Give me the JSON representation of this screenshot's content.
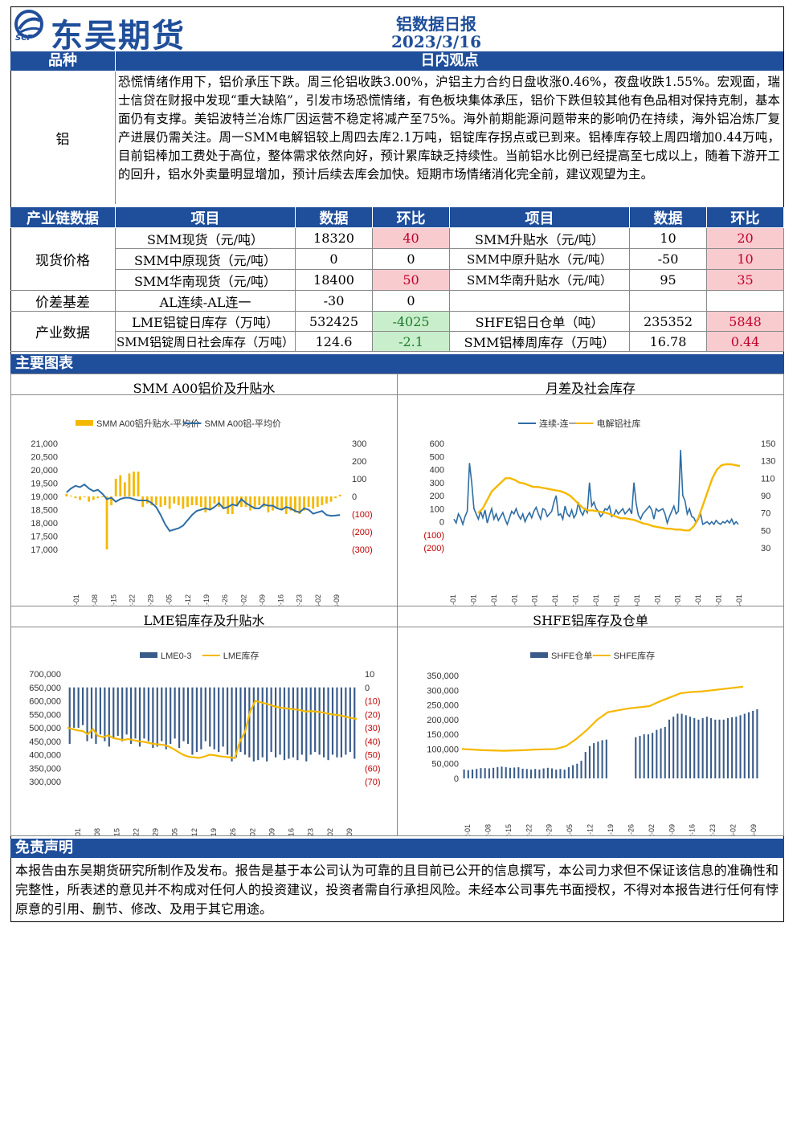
{
  "header": {
    "brand": "东吴期货",
    "logo_sub": "SCF",
    "report_title": "铝数据日报",
    "report_date": "2023/3/16"
  },
  "view": {
    "col1_label": "品种",
    "col2_label": "日内观点",
    "variety": "铝",
    "text": "恐慌情绪作用下，铝价承压下跌。周三伦铝收跌3.00%，沪铝主力合约日盘收涨0.46%，夜盘收跌1.55%。宏观面，瑞士信贷在财报中发现“重大缺陷”，引发市场恐慌情绪，有色板块集体承压，铝价下跌但较其他有色品相对保持克制，基本面仍有支撑。美铝波特兰冶炼厂因运营不稳定将减产至75%。海外前期能源问题带来的影响仍在持续，海外铝冶炼厂复产进展仍需关注。周一SMM电解铝较上周四去库2.1万吨，铝锭库存拐点或已到来。铝棒库存较上周四增加0.44万吨，目前铝棒加工费处于高位，整体需求依然向好，预计累库缺乏持续性。当前铝水比例已经提高至七成以上，随着下游开工的回升，铝水外卖量明显增加，预计后续去库会加快。短期市场情绪消化完全前，建议观望为主。"
  },
  "table": {
    "section": "产业链数据",
    "h_item": "项目",
    "h_data": "数据",
    "h_chg": "环比",
    "groups": {
      "spot": "现货价格",
      "basis": "价差基差",
      "industry": "产业数据"
    },
    "rows": [
      {
        "l_item": "SMM现货（元/吨）",
        "l_data": "18320",
        "l_chg": "40",
        "r_item": "SMM升贴水（元/吨）",
        "r_data": "10",
        "r_chg": "20"
      },
      {
        "l_item": "SMM中原现货（元/吨）",
        "l_data": "0",
        "l_chg": "0",
        "r_item": "SMM中原升贴水（元/吨）",
        "r_data": "-50",
        "r_chg": "10"
      },
      {
        "l_item": "SMM华南现货（元/吨）",
        "l_data": "18400",
        "l_chg": "50",
        "r_item": "SMM华南升贴水（元/吨）",
        "r_data": "95",
        "r_chg": "35"
      },
      {
        "l_item": "AL连续-AL连一",
        "l_data": "-30",
        "l_chg": "0",
        "r_item": "",
        "r_data": "",
        "r_chg": ""
      },
      {
        "l_item": "LME铝锭日库存（万吨）",
        "l_data": "532425",
        "l_chg": "-4025",
        "r_item": "SHFE铝日仓单（吨）",
        "r_data": "235352",
        "r_chg": "5848"
      },
      {
        "l_item": "SMM铝锭周日社会库存（万吨）",
        "l_data": "124.6",
        "l_chg": "-2.1",
        "r_item": "SMM铝棒周库存（万吨）",
        "r_data": "16.78",
        "r_chg": "0.44"
      }
    ]
  },
  "charts_section": "主要图表",
  "chart_data": [
    {
      "type": "bar+line",
      "title": "SMM A00铝价及升贴水",
      "legend": [
        "SMM A00铝升贴水-平均价",
        "SMM A00铝-平均价"
      ],
      "y_left_ticks": [
        "21,000",
        "20,500",
        "20,000",
        "19,500",
        "19,000",
        "18,500",
        "18,000",
        "17,500",
        "17,000"
      ],
      "y_right_ticks": [
        "300",
        "200",
        "100",
        "0",
        "(100)",
        "(200)",
        "(300)"
      ],
      "x_ticks": [
        "2022-12-01",
        "2022-12-08",
        "2022-12-15",
        "2022-12-22",
        "2022-12-29",
        "2023-01-05",
        "2023-01-12",
        "2023-01-19",
        "2023-01-26",
        "2023-02-02",
        "2023-02-09",
        "2023-02-16",
        "2023-02-23",
        "2023-03-02",
        "2023-03-09"
      ],
      "ylim_left": [
        17000,
        21000
      ],
      "ylim_right": [
        -300,
        300
      ],
      "price": [
        19150,
        19300,
        19400,
        19350,
        19450,
        19300,
        19200,
        19250,
        19100,
        18900,
        18950,
        18800,
        18900,
        18950,
        18950,
        18900,
        18850,
        18850,
        18850,
        18750,
        18600,
        18300,
        17950,
        17700,
        17750,
        17800,
        17900,
        18100,
        18300,
        18450,
        18500,
        18550,
        18500,
        18600,
        18750,
        18550,
        18600,
        18700,
        18650,
        18900,
        18750,
        18650,
        18550,
        18550,
        18700,
        18650,
        18650,
        18550,
        18500,
        18600,
        18550,
        18450,
        18400,
        18550,
        18500,
        18350,
        18400,
        18450,
        18300,
        18270,
        18280,
        18300
      ],
      "premium": [
        15,
        5,
        -10,
        -20,
        -5,
        -30,
        -20,
        -10,
        -5,
        -300,
        -50,
        100,
        120,
        80,
        130,
        140,
        140,
        -60,
        -40,
        -50,
        -50,
        -60,
        -50,
        -70,
        -40,
        -50,
        -70,
        -60,
        -50,
        -50,
        -60,
        -90,
        -70,
        -40,
        -60,
        -70,
        -100,
        -100,
        -50,
        -60,
        -60,
        -80,
        -70,
        -50,
        -60,
        -90,
        -80,
        -70,
        -70,
        -100,
        -80,
        -90,
        -100,
        -80,
        -60,
        -70,
        -60,
        -50,
        -40,
        -30,
        -10,
        10
      ]
    },
    {
      "type": "line",
      "title": "月差及社会库存",
      "legend": [
        "连续-连一",
        "电解铝社库"
      ],
      "y_left_ticks": [
        "600",
        "500",
        "400",
        "300",
        "200",
        "100",
        "0",
        "(100)",
        "(200)"
      ],
      "y_right_ticks": [
        "150",
        "130",
        "110",
        "90",
        "70",
        "50",
        "30"
      ],
      "x_ticks": [
        "2022-01-01",
        "2022-02-01",
        "2022-03-01",
        "2022-04-01",
        "2022-05-01",
        "2022-06-01",
        "2022-07-01",
        "2022-08-01",
        "2022-09-01",
        "2022-10-01",
        "2022-11-01",
        "2022-12-01",
        "2023-01-01",
        "2023-02-01",
        "2023-03-01"
      ],
      "ylim_left": [
        -200,
        600
      ],
      "ylim_right": [
        30,
        150
      ],
      "spread": [
        20,
        -10,
        60,
        30,
        -20,
        40,
        80,
        450,
        300,
        100,
        60,
        20,
        80,
        30,
        90,
        -10,
        50,
        100,
        20,
        60,
        10,
        40,
        70,
        20,
        -20,
        30,
        80,
        60,
        100,
        50,
        20,
        60,
        0,
        40,
        70,
        30,
        80,
        110,
        60,
        20,
        100,
        90,
        40,
        60,
        80,
        150,
        200,
        50,
        60,
        20,
        120,
        60,
        40,
        90,
        30,
        60,
        150,
        80,
        50,
        100,
        70,
        300,
        120,
        150,
        100,
        80,
        40,
        60,
        100,
        90,
        120,
        40,
        50,
        90,
        60,
        80,
        100,
        60,
        80,
        100,
        60,
        300,
        140,
        50,
        20,
        60,
        80,
        100,
        120,
        90,
        20,
        100,
        80,
        90,
        100,
        60,
        -10,
        40,
        80,
        120,
        60,
        80,
        550,
        200,
        160,
        60,
        100,
        40,
        30,
        -10,
        20,
        60,
        -20,
        -10,
        0,
        -20,
        0,
        -20,
        10,
        -10,
        -20,
        0,
        -10,
        10,
        -10,
        20,
        -20,
        0,
        -20
      ],
      "inventory": [
        70,
        75,
        85,
        95,
        100,
        105,
        110,
        110,
        108,
        105,
        104,
        102,
        100,
        100,
        99,
        98,
        97,
        96,
        95,
        93,
        90,
        85,
        80,
        75,
        73,
        73,
        72,
        71,
        70,
        68,
        66,
        64,
        64,
        63,
        62,
        60,
        58,
        57,
        55,
        54,
        53,
        52,
        52,
        51,
        51,
        50,
        50,
        55,
        65,
        80,
        95,
        110,
        120,
        125,
        126,
        126,
        125,
        124
      ]
    },
    {
      "type": "bar+line",
      "title": "LME铝库存及升贴水",
      "legend": [
        "LME0-3",
        "LME库存"
      ],
      "y_left_ticks": [
        "700,000",
        "650,000",
        "600,000",
        "550,000",
        "500,000",
        "450,000",
        "400,000",
        "350,000",
        "300,000"
      ],
      "y_right_ticks": [
        "10",
        "0",
        "(10)",
        "(20)",
        "(30)",
        "(40)",
        "(50)",
        "(60)",
        "(70)"
      ],
      "x_ticks": [
        "2022-12-01",
        "2022-12-08",
        "2022-12-15",
        "2022-12-22",
        "2022-12-29",
        "2023-01-05",
        "2023-01-12",
        "2023-01-19",
        "2023-01-26",
        "2023-02-02",
        "2023-02-09",
        "2023-02-16",
        "2023-02-23",
        "2023-03-02",
        "2023-03-09"
      ],
      "ylim_left": [
        300000,
        700000
      ],
      "ylim_right": [
        -70,
        10
      ],
      "lme0_3": [
        -42,
        -30,
        -30,
        -28,
        -40,
        -38,
        -42,
        -35,
        -40,
        -44,
        -38,
        -36,
        -40,
        -35,
        -42,
        -38,
        -44,
        -38,
        -40,
        -45,
        -44,
        -40,
        -46,
        -42,
        -38,
        -45,
        -40,
        -42,
        -50,
        -48,
        -46,
        -40,
        -44,
        -46,
        -48,
        -44,
        -50,
        -55,
        -52,
        -48,
        -50,
        -52,
        -55,
        -54,
        -52,
        -55,
        -48,
        -52,
        -50,
        -54,
        -53,
        -52,
        -54,
        -50,
        -55,
        -50,
        -48,
        -50,
        -52,
        -54,
        -50,
        -52,
        -52,
        -50,
        -48,
        -53
      ],
      "lme_stock": [
        500000,
        495000,
        490000,
        488000,
        476000,
        495000,
        470000,
        465000,
        472000,
        462000,
        458000,
        455000,
        458000,
        454000,
        450000,
        448000,
        444000,
        440000,
        438000,
        436000,
        430000,
        420000,
        408000,
        398000,
        392000,
        390000,
        388000,
        393000,
        400000,
        398000,
        394000,
        392000,
        390000,
        388000,
        450000,
        485000,
        560000,
        600000,
        595000,
        590000,
        585000,
        578000,
        575000,
        572000,
        570000,
        568000,
        565000,
        560000,
        562000,
        560000,
        558000,
        554000,
        550000,
        548000,
        545000,
        540000,
        536000,
        532425
      ]
    },
    {
      "type": "bar+line",
      "title": "SHFE铝库存及仓单",
      "legend": [
        "SHFE仓单",
        "SHFE库存"
      ],
      "y_ticks": [
        "350,000",
        "300,000",
        "250,000",
        "200,000",
        "150,000",
        "100,000",
        "50,000",
        "0"
      ],
      "x_ticks": [
        "2022-12-01",
        "2022-12-08",
        "2022-12-15",
        "2022-12-22",
        "2022-12-29",
        "2023-01-05",
        "2023-01-12",
        "2023-01-19",
        "2023-01-26",
        "2023-02-02",
        "2023-02-09",
        "2023-02-16",
        "2023-02-23",
        "2023-03-02",
        "2023-03-09"
      ],
      "ylim": [
        0,
        350000
      ],
      "warrants": [
        30000,
        28000,
        30000,
        32000,
        35000,
        35000,
        34000,
        36000,
        38000,
        40000,
        38000,
        36000,
        37000,
        38000,
        33000,
        32000,
        30000,
        32000,
        30000,
        34000,
        36000,
        34000,
        30000,
        32000,
        30000,
        38000,
        45000,
        50000,
        60000,
        90000,
        110000,
        120000,
        125000,
        130000,
        132000,
        0,
        0,
        0,
        0,
        0,
        0,
        140000,
        145000,
        150000,
        150000,
        155000,
        165000,
        170000,
        175000,
        200000,
        210000,
        220000,
        220000,
        215000,
        210000,
        205000,
        200000,
        205000,
        210000,
        205000,
        200000,
        200000,
        200000,
        205000,
        208000,
        210000,
        215000,
        220000,
        225000,
        230000,
        235352
      ],
      "stock": [
        100000,
        98000,
        96000,
        95000,
        94000,
        95000,
        96000,
        98000,
        99000,
        100000,
        110000,
        135000,
        165000,
        200000,
        225000,
        232000,
        238000,
        242000,
        246000,
        262000,
        276000,
        290000,
        294000,
        296000,
        300000,
        304000,
        308000,
        312000
      ]
    }
  ],
  "disclaimer": {
    "title": "免责声明",
    "text": "本报告由东吴期货研究所制作及发布。报告是基于本公司认为可靠的且目前已公开的信息撰写，本公司力求但不保证该信息的准确性和完整性，所表述的意见并不构成对任何人的投资建议，投资者需自行承担风险。未经本公司事先书面授权，不得对本报告进行任何有悖原意的引用、删节、修改、及用于其它用途。"
  },
  "colors": {
    "brand_blue": "#1f4e9a",
    "line_blue": "#2e6da4",
    "gold": "#f5b800",
    "bar_navy": "#3a5c8a",
    "neg_red": "#c00000"
  }
}
